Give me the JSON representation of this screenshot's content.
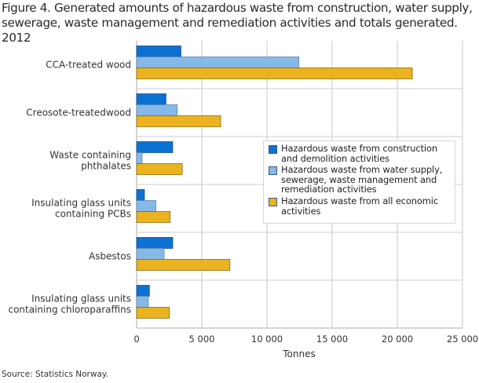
{
  "title": "Figure 4. Generated amounts of hazardous waste  from construction, water supply, sewerage, waste management and remediation activities and totals generated. 2012",
  "source": "Source: Statistics Norway.",
  "chart_data": {
    "type": "bar",
    "orientation": "horizontal",
    "title": "Figure 4. Generated amounts of hazardous waste  from construction, water supply, sewerage, waste management and remediation activities and totals generated. 2012",
    "xlabel": "Tonnes",
    "ylabel": "",
    "xlim": [
      0,
      25000
    ],
    "grid": true,
    "legend_position": "center-right",
    "x_ticks": [
      0,
      5000,
      10000,
      15000,
      20000,
      25000
    ],
    "x_tick_labels": [
      "0",
      "5 000",
      "10 000",
      "15 000",
      "20 000",
      "25 000"
    ],
    "categories": [
      [
        "CCA-treated wood"
      ],
      [
        "Creosote-treatedwood"
      ],
      [
        "Waste containing",
        "phthalates"
      ],
      [
        "Insulating glass units",
        "containing PCBs"
      ],
      [
        "Asbestos"
      ],
      [
        "Insulating glass units",
        "containing chloroparaffins"
      ]
    ],
    "series": [
      {
        "name": [
          "Hazardous waste from construction",
          "and demolition activities"
        ],
        "color": "#0b71d2",
        "values": [
          3400,
          2250,
          2770,
          600,
          2770,
          980
        ]
      },
      {
        "name": [
          "Hazardous waste from water supply,",
          "sewerage, waste management and",
          "remediation activities"
        ],
        "color": "#87b9e8",
        "values": [
          12450,
          3120,
          420,
          1480,
          2110,
          900
        ]
      },
      {
        "name": [
          "Hazardous waste from all economic",
          "activities"
        ],
        "color": "#ebb31f",
        "values": [
          21150,
          6450,
          3500,
          2570,
          7150,
          2510
        ]
      }
    ]
  }
}
